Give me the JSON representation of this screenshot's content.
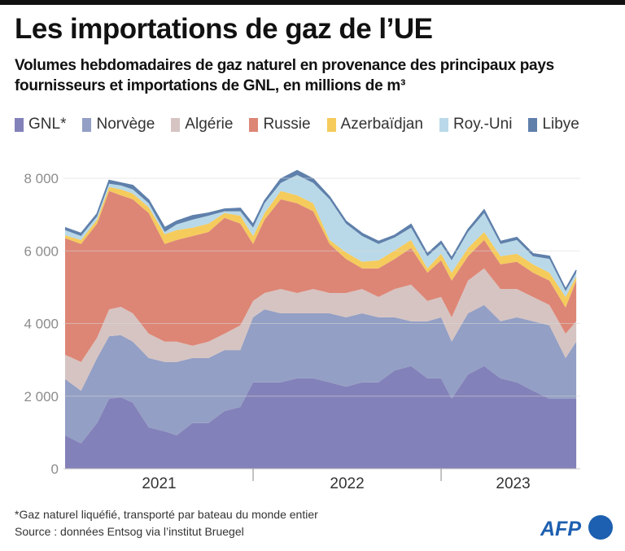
{
  "header": {
    "title": "Les importations de gaz de l’UE",
    "subtitle": "Volumes hebdomadaires de gaz naturel en provenance des principaux pays fournisseurs et importations de GNL, en millions de m³"
  },
  "legend": [
    {
      "label": "GNL*",
      "color": "#8381b9"
    },
    {
      "label": "Norvège",
      "color": "#939fc4"
    },
    {
      "label": "Algérie",
      "color": "#d6c4c2"
    },
    {
      "label": "Russie",
      "color": "#dd8676"
    },
    {
      "label": "Azerbaïdjan",
      "color": "#f5cb5c"
    },
    {
      "label": "Roy.-Uni",
      "color": "#b9d9e8"
    },
    {
      "label": "Libye",
      "color": "#5f80ab"
    }
  ],
  "chart_data": {
    "type": "area",
    "stacked": true,
    "title": "Les importations de gaz de l’UE",
    "ylabel": "millions de m³",
    "xlabel": "",
    "ylim": [
      0,
      8000
    ],
    "xlim": [
      2021.0,
      2023.74
    ],
    "y_ticks": [
      0,
      2000,
      4000,
      6000,
      8000
    ],
    "y_tick_labels": [
      "0",
      "2 000",
      "4 000",
      "6 000",
      "8 000"
    ],
    "x_tick_labels": [
      "2021",
      "2022",
      "2023"
    ],
    "x_year_boundaries": [
      2022.0,
      2023.0
    ],
    "grid": true,
    "x": [
      2021.0,
      2021.085,
      2021.17,
      2021.234,
      2021.297,
      2021.36,
      2021.445,
      2021.53,
      2021.593,
      2021.678,
      2021.763,
      2021.848,
      2021.932,
      2022.0,
      2022.061,
      2022.147,
      2022.234,
      2022.32,
      2022.407,
      2022.494,
      2022.58,
      2022.667,
      2022.753,
      2022.84,
      2022.927,
      2023.0,
      2023.056,
      2023.143,
      2023.229,
      2023.316,
      2023.403,
      2023.489,
      2023.576,
      2023.662,
      2023.719
    ],
    "series": [
      {
        "name": "GNL*",
        "values": [
          920,
          700,
          1260,
          1930,
          1970,
          1820,
          1140,
          1030,
          920,
          1260,
          1260,
          1590,
          1700,
          2380,
          2380,
          2380,
          2490,
          2490,
          2380,
          2260,
          2380,
          2380,
          2710,
          2830,
          2490,
          2490,
          1930,
          2600,
          2830,
          2490,
          2380,
          2150,
          1930,
          1930,
          1930
        ]
      },
      {
        "name": "Norvège",
        "values": [
          1550,
          1450,
          1790,
          1720,
          1710,
          1680,
          1910,
          1910,
          2020,
          1790,
          1790,
          1680,
          1570,
          1790,
          2010,
          1900,
          1790,
          1790,
          1900,
          1910,
          1900,
          1790,
          1460,
          1230,
          1570,
          1680,
          1570,
          1680,
          1680,
          1570,
          1790,
          1910,
          2020,
          1120,
          1570
        ]
      },
      {
        "name": "Algérie",
        "values": [
          670,
          790,
          560,
          740,
          780,
          780,
          670,
          560,
          560,
          340,
          450,
          450,
          680,
          450,
          450,
          670,
          560,
          670,
          560,
          670,
          670,
          560,
          780,
          1010,
          560,
          560,
          670,
          900,
          1010,
          890,
          780,
          670,
          560,
          670,
          560
        ]
      },
      {
        "name": "Russie",
        "values": [
          3210,
          3250,
          3140,
          3260,
          3070,
          3140,
          3320,
          2690,
          2800,
          3020,
          3020,
          3190,
          2800,
          1570,
          2020,
          2470,
          2470,
          2140,
          1350,
          940,
          570,
          790,
          830,
          1010,
          780,
          1010,
          1010,
          670,
          780,
          680,
          750,
          670,
          670,
          720,
          1120
        ]
      },
      {
        "name": "Azerbaïdjan",
        "values": [
          80,
          110,
          110,
          110,
          160,
          160,
          160,
          270,
          270,
          230,
          230,
          130,
          220,
          220,
          180,
          230,
          220,
          220,
          110,
          180,
          180,
          220,
          230,
          220,
          120,
          180,
          220,
          230,
          220,
          220,
          220,
          230,
          220,
          290,
          110
        ]
      },
      {
        "name": "Roy.-Uni",
        "values": [
          140,
          110,
          90,
          90,
          110,
          110,
          110,
          60,
          160,
          220,
          220,
          50,
          120,
          230,
          270,
          220,
          560,
          560,
          1120,
          790,
          710,
          450,
          360,
          340,
          330,
          270,
          340,
          440,
          520,
          340,
          380,
          220,
          380,
          160,
          110
        ]
      },
      {
        "name": "Libye",
        "values": [
          70,
          70,
          70,
          90,
          70,
          110,
          90,
          120,
          90,
          110,
          70,
          60,
          80,
          90,
          70,
          110,
          120,
          110,
          70,
          70,
          70,
          70,
          60,
          90,
          70,
          70,
          70,
          70,
          90,
          70,
          70,
          70,
          70,
          60,
          70
        ]
      }
    ]
  },
  "footer": {
    "note": "*Gaz naturel liquéfié, transporté par bateau du monde entier",
    "source": "Source : données Entsog via l’institut Bruegel",
    "logo_text": "AFP"
  },
  "colors": {
    "grid": "#d9d9d9",
    "axis_text": "#8c8c8c",
    "year_text": "#333333",
    "logo_blue": "#1d5fb0"
  }
}
